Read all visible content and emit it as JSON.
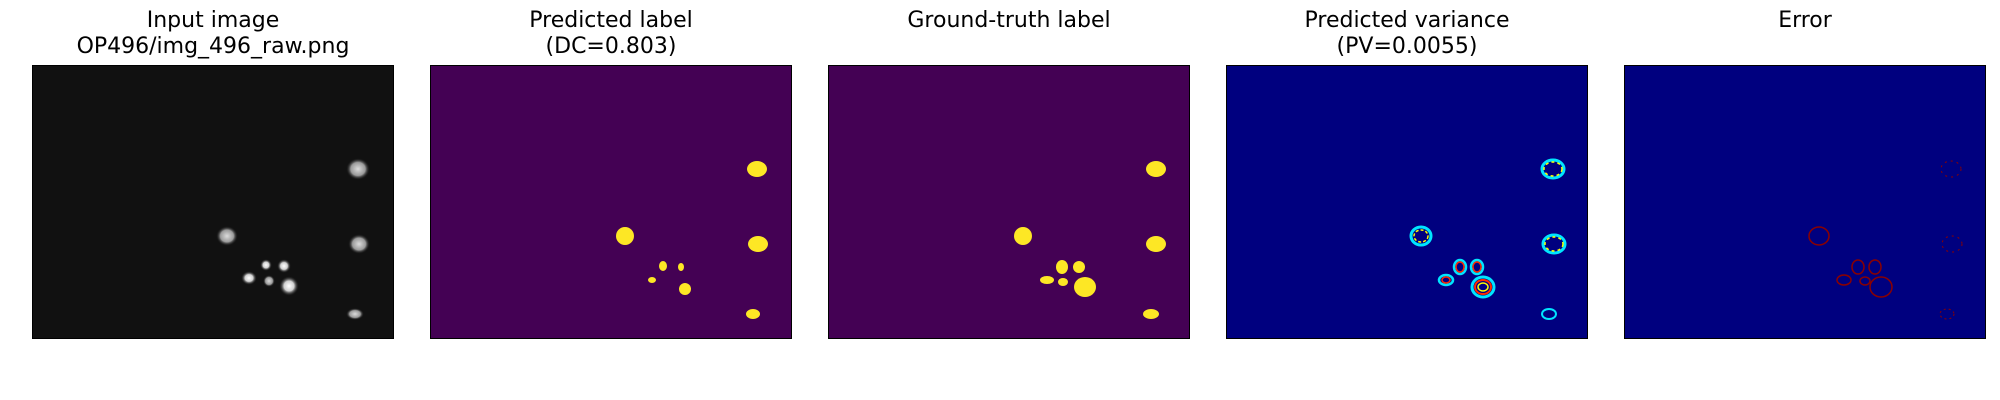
{
  "figure": {
    "background": "#ffffff",
    "panels": [
      {
        "id": "input",
        "title_line1": "Input image",
        "title_line2": "OP496/img_496_raw.png",
        "background_color": "#111111",
        "blob_color": "#d8d8d8"
      },
      {
        "id": "predicted-label",
        "title_line1": "Predicted label",
        "title_line2": "(DC=0.803)",
        "background_color": "#440154",
        "blob_color": "#fde725"
      },
      {
        "id": "ground-truth",
        "title_line1": "",
        "title_line2": "Ground-truth label",
        "background_color": "#440154",
        "blob_color": "#fde725"
      },
      {
        "id": "predicted-variance",
        "title_line1": "Predicted variance",
        "title_line2": "(PV=0.0055)",
        "background_color": "#00007f",
        "ring_colors": [
          "#00e5ff",
          "#ffff00",
          "#ff2a00"
        ]
      },
      {
        "id": "error",
        "title_line1": "",
        "title_line2": "Error",
        "background_color": "#00007f",
        "outline_color": "#8b0000"
      }
    ]
  }
}
